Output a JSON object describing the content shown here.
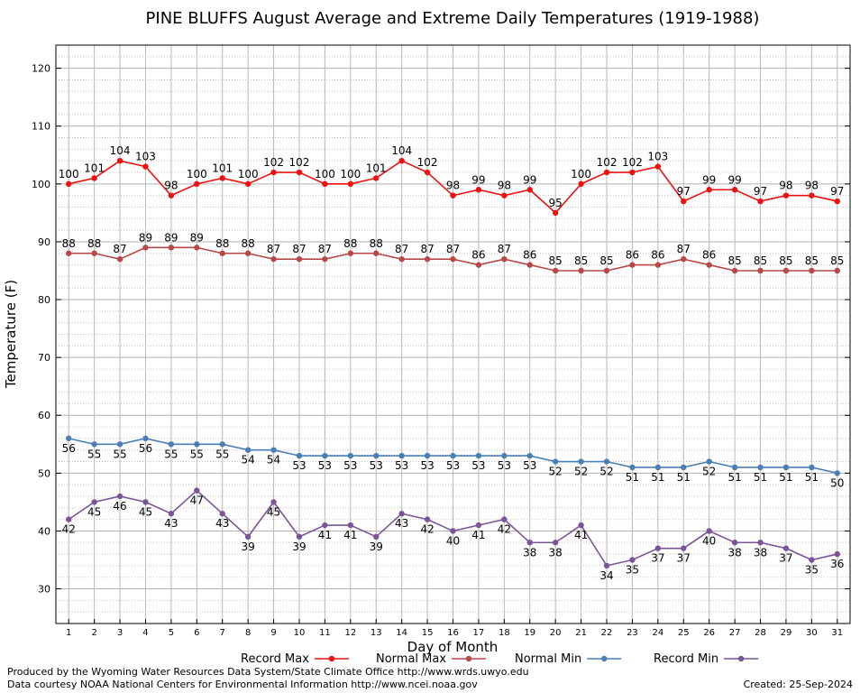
{
  "chart_data": {
    "type": "line",
    "title": "PINE BLUFFS August Average and Extreme Daily Temperatures (1919-1988)",
    "xlabel": "Day of Month",
    "ylabel": "Temperature (F)",
    "xlim": [
      0.5,
      31.5
    ],
    "ylim": [
      24,
      124
    ],
    "y_ticks": [
      30,
      40,
      50,
      60,
      70,
      80,
      90,
      100,
      110,
      120
    ],
    "x": [
      1,
      2,
      3,
      4,
      5,
      6,
      7,
      8,
      9,
      10,
      11,
      12,
      13,
      14,
      15,
      16,
      17,
      18,
      19,
      20,
      21,
      22,
      23,
      24,
      25,
      26,
      27,
      28,
      29,
      30,
      31
    ],
    "grid": true,
    "legend_placement": "bottom",
    "series": [
      {
        "name": "Record Max",
        "color": "#ee1111",
        "label_position": "above",
        "values": [
          100,
          101,
          104,
          103,
          98,
          100,
          101,
          100,
          102,
          102,
          100,
          100,
          101,
          104,
          102,
          98,
          99,
          98,
          99,
          95,
          100,
          102,
          102,
          103,
          97,
          99,
          99,
          97,
          98,
          98,
          97
        ]
      },
      {
        "name": "Normal Max",
        "color": "#b84848",
        "label_position": "above",
        "values": [
          88,
          88,
          87,
          89,
          89,
          89,
          88,
          88,
          87,
          87,
          87,
          88,
          88,
          87,
          87,
          87,
          86,
          87,
          86,
          85,
          85,
          85,
          86,
          86,
          87,
          86,
          85,
          85,
          85,
          85,
          85
        ]
      },
      {
        "name": "Normal Min",
        "color": "#4a7fb5",
        "label_position": "below",
        "values": [
          56,
          55,
          55,
          56,
          55,
          55,
          55,
          54,
          54,
          53,
          53,
          53,
          53,
          53,
          53,
          53,
          53,
          53,
          53,
          52,
          52,
          52,
          51,
          51,
          51,
          52,
          51,
          51,
          51,
          51,
          50
        ]
      },
      {
        "name": "Record Min",
        "color": "#7b5598",
        "label_position": "below",
        "values": [
          42,
          45,
          46,
          45,
          43,
          47,
          43,
          39,
          45,
          39,
          41,
          41,
          39,
          43,
          42,
          40,
          41,
          42,
          38,
          38,
          41,
          34,
          35,
          37,
          37,
          40,
          38,
          38,
          37,
          35,
          36
        ]
      }
    ]
  },
  "footer": {
    "produced_by": "Produced by the Wyoming Water Resources Data System/State Climate Office http://www.wrds.uwyo.edu",
    "data_courtesy": "Data courtesy NOAA National Centers for Environmental Information http://www.ncei.noaa.gov",
    "created": "Created:  25-Sep-2024"
  }
}
